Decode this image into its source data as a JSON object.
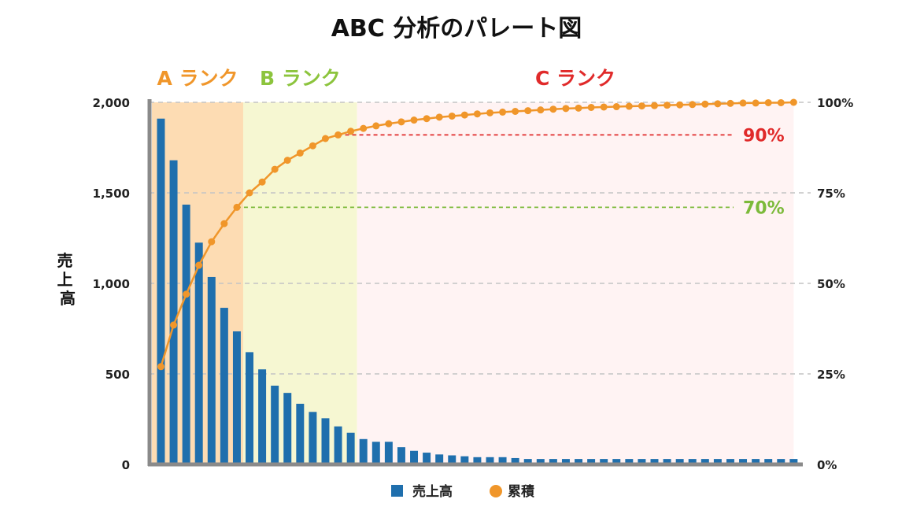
{
  "chart_data": {
    "type": "bar",
    "title": "ABC 分析のパレート図",
    "ylabel": "売上高",
    "ylim": [
      0,
      2000
    ],
    "y_ticks": [
      "0",
      "500",
      "1,000",
      "1,500",
      "2,000"
    ],
    "y2lim": [
      0,
      100
    ],
    "y2_ticks": [
      "0%",
      "25%",
      "50%",
      "75%",
      "100%"
    ],
    "grid": true,
    "legend_position": "bottom-center",
    "legend": [
      {
        "name": "売上高",
        "marker": "square"
      },
      {
        "name": "累積",
        "marker": "circle"
      }
    ],
    "series": [
      {
        "name": "売上高",
        "kind": "bar",
        "axis": "left",
        "color": "#1f6fad",
        "values": [
          1910,
          1680,
          1435,
          1225,
          1035,
          865,
          735,
          620,
          525,
          435,
          395,
          335,
          290,
          255,
          210,
          175,
          140,
          125,
          125,
          95,
          75,
          65,
          55,
          50,
          45,
          40,
          40,
          40,
          35,
          30,
          30,
          30,
          30,
          30,
          30,
          30,
          30,
          30,
          30,
          30,
          30,
          30,
          30,
          30,
          30,
          30,
          30,
          30,
          30,
          30,
          30
        ]
      },
      {
        "name": "累積",
        "kind": "line",
        "axis": "right",
        "color": "#f0962a",
        "values": [
          27,
          38.5,
          47,
          55,
          61.5,
          66.5,
          71,
          75,
          78,
          81.5,
          84,
          86,
          88,
          90,
          91,
          92,
          92.8,
          93.5,
          94.1,
          94.6,
          95.1,
          95.5,
          95.9,
          96.2,
          96.5,
          96.8,
          97.1,
          97.3,
          97.5,
          97.7,
          97.9,
          98.1,
          98.3,
          98.4,
          98.6,
          98.7,
          98.8,
          98.9,
          99,
          99.1,
          99.2,
          99.3,
          99.4,
          99.5,
          99.6,
          99.7,
          99.8,
          99.8,
          99.9,
          99.9,
          100
        ]
      }
    ],
    "thresholds": [
      {
        "label": "90%",
        "value": 91,
        "color": "#e02a2a"
      },
      {
        "label": "70%",
        "value": 71,
        "color": "#7cba3a"
      }
    ],
    "ranks": [
      {
        "label": "A ランク",
        "from_item": 1,
        "to_item": 7,
        "color": "#f0962a",
        "bg": "#fddcb3"
      },
      {
        "label": "B ランク",
        "from_item": 8,
        "to_item": 16,
        "color": "#8cc43d",
        "bg": "#f6f7d2"
      },
      {
        "label": "C ランク",
        "from_item": 17,
        "to_item": 51,
        "color": "#e02a2a",
        "bg": "#fff3f3"
      }
    ]
  }
}
